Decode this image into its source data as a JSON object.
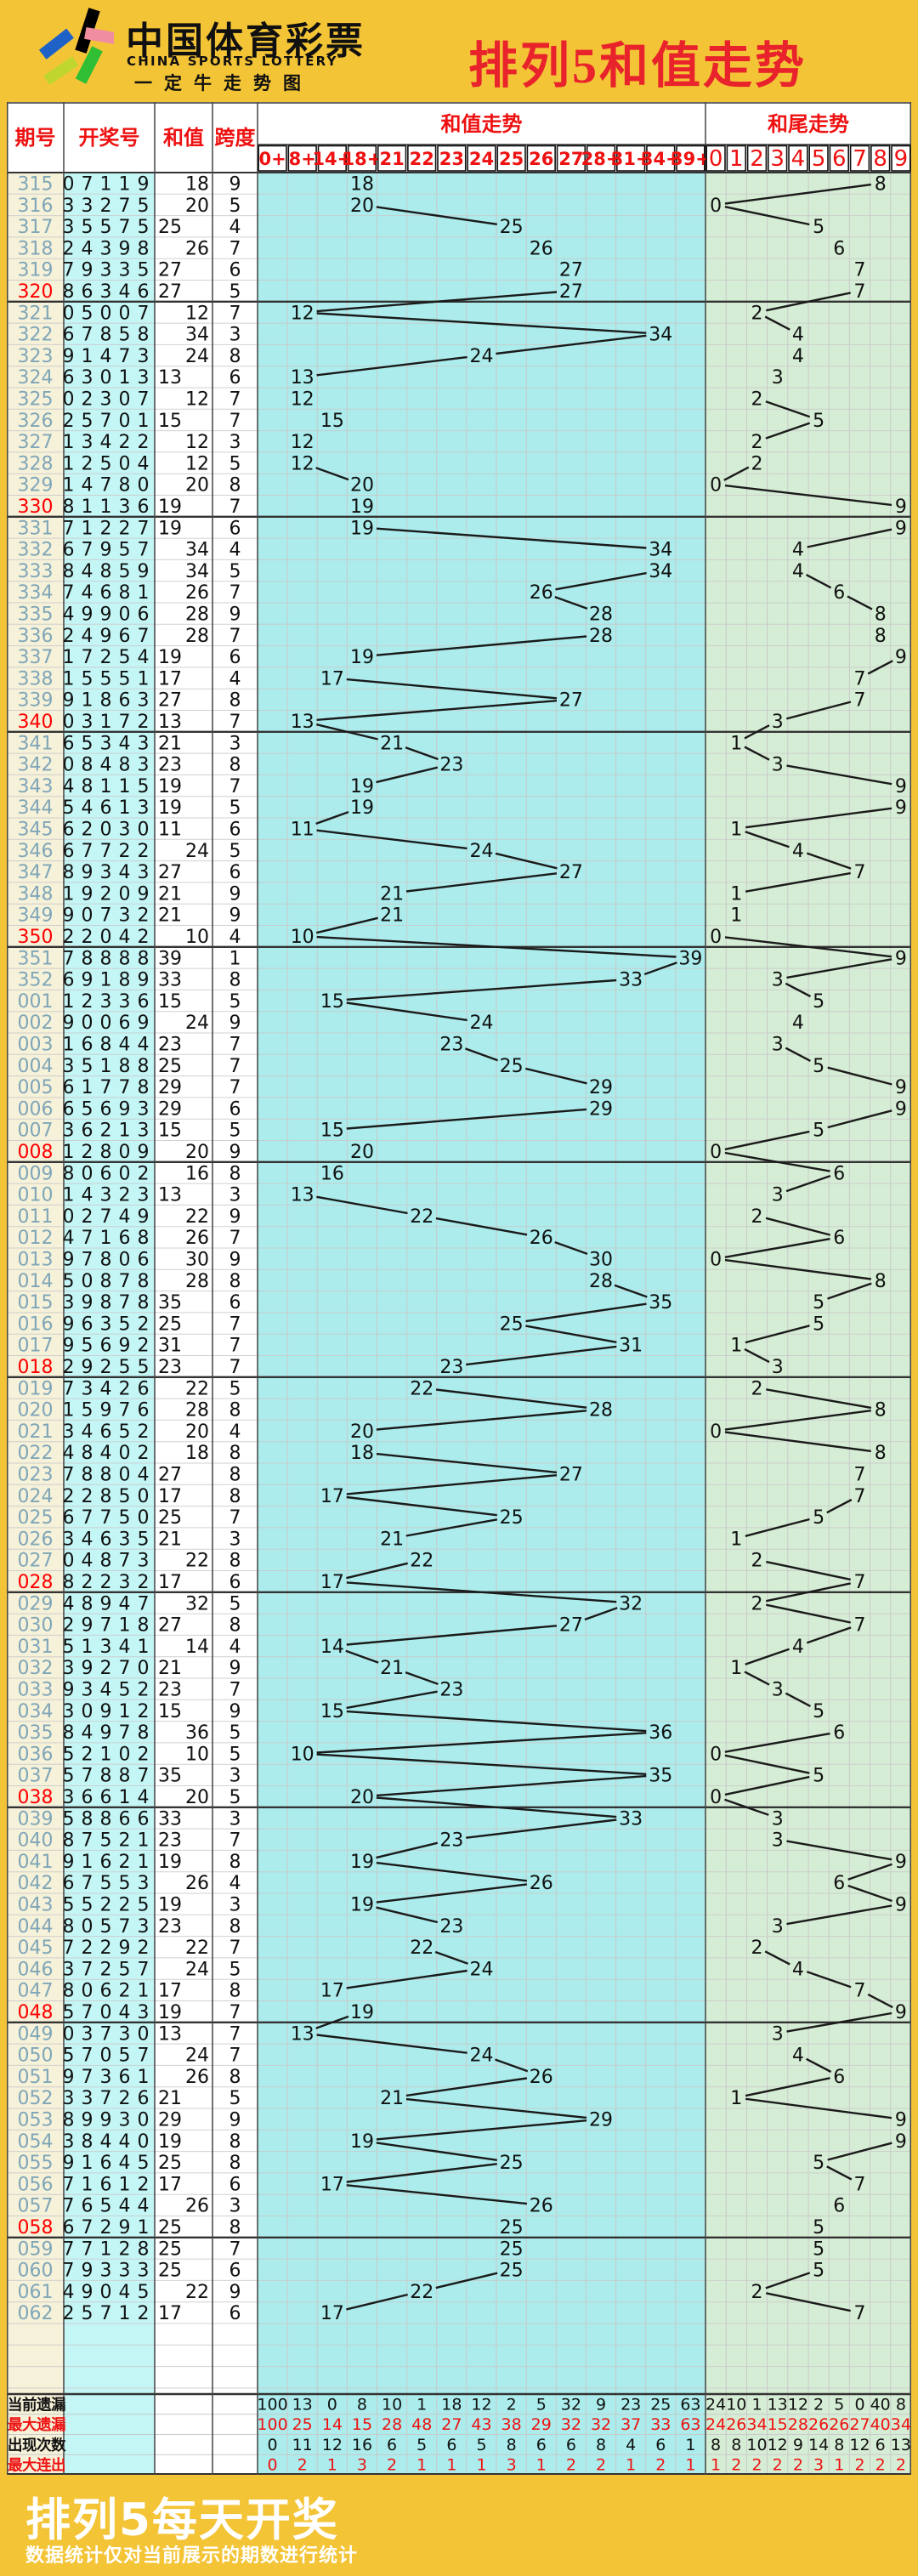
{
  "header": {
    "brand_cn": "中国体育彩票",
    "brand_en": "CHINA SPORTS LOTTERY",
    "brand_sub": "一定牛走势图",
    "title": "排列5和值走势"
  },
  "columns": {
    "period": "期号",
    "draw": "开奖号",
    "sum": "和值",
    "span": "跨度",
    "sum_trend": "和值走势",
    "tail_trend": "和尾走势"
  },
  "chart_data": {
    "type": "line",
    "title": "排列5和值走势",
    "xlabel": "期号",
    "ylabel": "和值",
    "sum_bucket_labels": [
      "0+",
      "8+",
      "14+",
      "18+",
      "21",
      "22",
      "23",
      "24",
      "25",
      "26",
      "27",
      "28+",
      "31+",
      "34+",
      "39+"
    ],
    "tail_labels": [
      "0",
      "1",
      "2",
      "3",
      "4",
      "5",
      "6",
      "7",
      "8",
      "9"
    ],
    "x": [
      "315",
      "316",
      "317",
      "318",
      "319",
      "320",
      "321",
      "322",
      "323",
      "324",
      "325",
      "326",
      "327",
      "328",
      "329",
      "330",
      "331",
      "332",
      "333",
      "334",
      "335",
      "336",
      "337",
      "338",
      "339",
      "340",
      "341",
      "342",
      "343",
      "344",
      "345",
      "346",
      "347",
      "348",
      "349",
      "350",
      "351",
      "352",
      "001",
      "002",
      "003",
      "004",
      "005",
      "006",
      "007",
      "008",
      "009",
      "010",
      "011",
      "012",
      "013",
      "014",
      "015",
      "016",
      "017",
      "018",
      "019",
      "020",
      "021",
      "022",
      "023",
      "024",
      "025",
      "026",
      "027",
      "028",
      "029",
      "030",
      "031",
      "032",
      "033",
      "034",
      "035",
      "036",
      "037",
      "038",
      "039",
      "040",
      "041",
      "042",
      "043",
      "044",
      "045",
      "046",
      "047",
      "048",
      "049",
      "050",
      "051",
      "052",
      "053",
      "054",
      "055",
      "056",
      "057",
      "058",
      "059",
      "060",
      "061",
      "062"
    ],
    "draws": [
      "07119",
      "33275",
      "35575",
      "24398",
      "79335",
      "86346",
      "05007",
      "67858",
      "91473",
      "63013",
      "02307",
      "25701",
      "13422",
      "12504",
      "14780",
      "81136",
      "71227",
      "67957",
      "84859",
      "74681",
      "49906",
      "24967",
      "17254",
      "15551",
      "91863",
      "03172",
      "65343",
      "08483",
      "48115",
      "54613",
      "62030",
      "67722",
      "89343",
      "19209",
      "90732",
      "22042",
      "78888",
      "69189",
      "12336",
      "90069",
      "16844",
      "35188",
      "61778",
      "65693",
      "36213",
      "12809",
      "80602",
      "14323",
      "02749",
      "47168",
      "97806",
      "50878",
      "39878",
      "96352",
      "95692",
      "29255",
      "73426",
      "15976",
      "34652",
      "48402",
      "78804",
      "22850",
      "67750",
      "34635",
      "04873",
      "82232",
      "48947",
      "29718",
      "51341",
      "39270",
      "93452",
      "30912",
      "84978",
      "52102",
      "57887",
      "36614",
      "58866",
      "87521",
      "91621",
      "67553",
      "55225",
      "80573",
      "72292",
      "37257",
      "80621",
      "57043",
      "03730",
      "57057",
      "97361",
      "33726",
      "89930",
      "38440",
      "91645",
      "71612",
      "76544",
      "67291",
      "77128",
      "79333",
      "49045",
      "25712"
    ],
    "series": [
      {
        "name": "和值",
        "values": [
          18,
          20,
          25,
          26,
          27,
          27,
          12,
          34,
          24,
          13,
          12,
          15,
          12,
          12,
          20,
          19,
          19,
          34,
          34,
          26,
          28,
          28,
          19,
          17,
          27,
          13,
          21,
          23,
          19,
          19,
          11,
          24,
          27,
          21,
          21,
          10,
          39,
          33,
          15,
          24,
          23,
          25,
          29,
          29,
          15,
          20,
          16,
          13,
          22,
          26,
          30,
          28,
          35,
          25,
          31,
          23,
          22,
          28,
          20,
          18,
          27,
          17,
          25,
          21,
          22,
          17,
          32,
          27,
          14,
          21,
          23,
          15,
          36,
          10,
          35,
          20,
          33,
          23,
          19,
          26,
          19,
          23,
          22,
          24,
          17,
          19,
          13,
          24,
          26,
          21,
          29,
          19,
          25,
          17,
          26,
          25,
          25,
          25,
          22,
          17
        ]
      },
      {
        "name": "跨度",
        "values": [
          9,
          5,
          4,
          7,
          6,
          5,
          7,
          3,
          8,
          6,
          7,
          7,
          3,
          5,
          8,
          7,
          6,
          4,
          5,
          7,
          9,
          7,
          6,
          4,
          8,
          7,
          3,
          8,
          7,
          5,
          6,
          5,
          6,
          9,
          9,
          4,
          1,
          8,
          5,
          9,
          7,
          7,
          7,
          6,
          5,
          9,
          8,
          3,
          9,
          7,
          9,
          8,
          6,
          7,
          7,
          7,
          5,
          8,
          4,
          8,
          8,
          8,
          7,
          3,
          8,
          6,
          5,
          8,
          4,
          9,
          7,
          9,
          5,
          5,
          3,
          5,
          3,
          7,
          8,
          4,
          3,
          8,
          7,
          5,
          8,
          7,
          7,
          7,
          8,
          5,
          9,
          8,
          8,
          6,
          3,
          8,
          7,
          6,
          9,
          6
        ]
      },
      {
        "name": "和尾",
        "values": [
          8,
          0,
          5,
          6,
          7,
          7,
          2,
          4,
          4,
          3,
          2,
          5,
          2,
          2,
          0,
          9,
          9,
          4,
          4,
          6,
          8,
          8,
          9,
          7,
          7,
          3,
          1,
          3,
          9,
          9,
          1,
          4,
          7,
          1,
          1,
          0,
          9,
          3,
          5,
          4,
          3,
          5,
          9,
          9,
          5,
          0,
          6,
          3,
          2,
          6,
          0,
          8,
          5,
          5,
          1,
          3,
          2,
          8,
          0,
          8,
          7,
          7,
          5,
          1,
          2,
          7,
          2,
          7,
          4,
          1,
          3,
          5,
          6,
          0,
          5,
          0,
          3,
          3,
          9,
          6,
          9,
          3,
          2,
          4,
          7,
          9,
          3,
          4,
          6,
          1,
          9,
          9,
          5,
          7,
          6,
          5,
          5,
          5,
          2,
          7
        ]
      }
    ]
  },
  "stats": {
    "labels": [
      "当前遗漏",
      "最大遗漏",
      "出现次数",
      "最大连出"
    ],
    "sum": [
      [
        100,
        13,
        0,
        8,
        10,
        1,
        18,
        12,
        2,
        5,
        32,
        9,
        23,
        25,
        63
      ],
      [
        100,
        25,
        14,
        15,
        28,
        48,
        27,
        43,
        38,
        29,
        32,
        32,
        37,
        33,
        63
      ],
      [
        0,
        11,
        12,
        16,
        6,
        5,
        6,
        5,
        8,
        6,
        6,
        8,
        4,
        6,
        1
      ],
      [
        0,
        2,
        1,
        3,
        2,
        1,
        1,
        1,
        3,
        1,
        2,
        2,
        1,
        2,
        1
      ]
    ],
    "tail": [
      [
        24,
        10,
        1,
        13,
        12,
        2,
        5,
        0,
        40,
        8
      ],
      [
        24,
        26,
        34,
        15,
        28,
        26,
        26,
        27,
        40,
        34
      ],
      [
        8,
        8,
        10,
        12,
        9,
        14,
        8,
        12,
        6,
        13
      ],
      [
        1,
        2,
        2,
        2,
        2,
        3,
        1,
        2,
        2,
        2
      ]
    ]
  },
  "footer": {
    "title": "排列5每天开奖",
    "note": "数据统计仅对当前展示的期数进行统计"
  },
  "colors": {
    "page_yellow": "#F4C437",
    "title_red": "#E8232B",
    "header_text_red": "#EE1111",
    "period_blue": "#7FA6B8",
    "milestone_red": "#FF0000",
    "period_col_bg": "#F6F1D9",
    "draw_col_bg": "#C5F6F6",
    "sum_trend_bg": "#ACECEC",
    "tail_trend_bg": "#D6EDD5",
    "grid_light": "#C9C9C9",
    "line_dark": "#333333",
    "trend_line": "#1A1A1A",
    "stat_red": "#EE1111",
    "text_black": "#111111"
  }
}
